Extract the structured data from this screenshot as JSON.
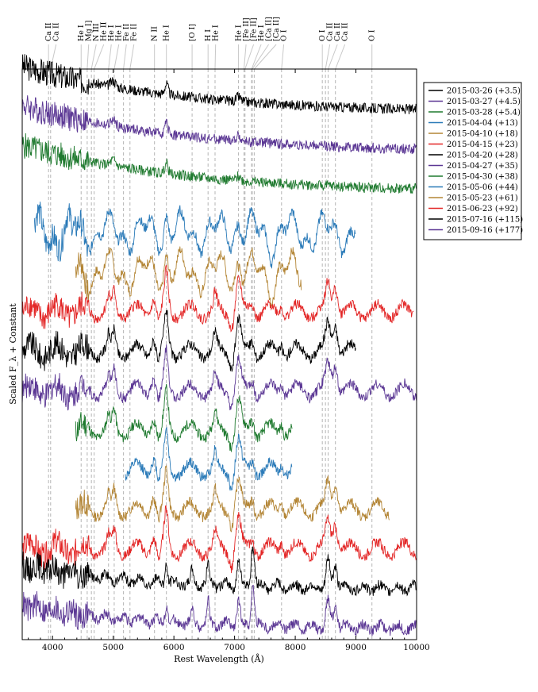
{
  "chart_data": {
    "type": "line",
    "title": "",
    "xlabel": "Rest Wavelength (Å)",
    "ylabel": "Scaled F_λ + Constant",
    "xlim": [
      3500,
      10000
    ],
    "x_ticks": [
      4000,
      5000,
      6000,
      7000,
      8000,
      9000,
      10000
    ],
    "x_tick_labels": [
      "4000",
      "5000",
      "6000",
      "7000",
      "8000",
      "9000",
      "10000"
    ],
    "legend_position": "outside-right-top",
    "grid": false,
    "line_markers": [
      {
        "label": "Ca II",
        "wavelength": 3934
      },
      {
        "label": "Ca II",
        "wavelength": 3968
      },
      {
        "label": "He I",
        "wavelength": 4471
      },
      {
        "label": "Mg I]",
        "wavelength": 4571
      },
      {
        "label": "N III",
        "wavelength": 4640
      },
      {
        "label": "He II",
        "wavelength": 4686
      },
      {
        "label": "He I",
        "wavelength": 4922
      },
      {
        "label": "He I",
        "wavelength": 5016
      },
      {
        "label": "Fe II",
        "wavelength": 5169
      },
      {
        "label": "Fe II",
        "wavelength": 5276
      },
      {
        "label": "N II",
        "wavelength": 5680
      },
      {
        "label": "He I",
        "wavelength": 5876
      },
      {
        "label": "[O I]",
        "wavelength": 6300
      },
      {
        "label": "H I",
        "wavelength": 6563
      },
      {
        "label": "He I",
        "wavelength": 6678
      },
      {
        "label": "He I",
        "wavelength": 7065
      },
      {
        "label": "[Fe II]",
        "wavelength": 7155
      },
      {
        "label": "[Fe II]",
        "wavelength": 7172
      },
      {
        "label": "He I",
        "wavelength": 7281
      },
      {
        "label": "[Ca II]",
        "wavelength": 7291
      },
      {
        "label": "[Ca II]",
        "wavelength": 7324
      },
      {
        "label": "O I",
        "wavelength": 7774
      },
      {
        "label": "O I",
        "wavelength": 8446
      },
      {
        "label": "Ca II",
        "wavelength": 8498
      },
      {
        "label": "Ca II",
        "wavelength": 8542
      },
      {
        "label": "Ca II",
        "wavelength": 8662
      },
      {
        "label": "O I",
        "wavelength": 9264
      }
    ],
    "series": [
      {
        "name": "2015-03-26 (+3.5)",
        "color": "#000000",
        "x_range": [
          3500,
          10000
        ],
        "offset": 13,
        "shape": "blue_continuum",
        "features": []
      },
      {
        "name": "2015-03-27 (+4.5)",
        "color": "#5b3794",
        "x_range": [
          3500,
          10000
        ],
        "offset": 12,
        "shape": "blue_continuum",
        "features": []
      },
      {
        "name": "2015-03-28 (+5.4)",
        "color": "#1f7a2f",
        "x_range": [
          3500,
          10000
        ],
        "offset": 11,
        "shape": "blue_continuum",
        "features": []
      },
      {
        "name": "2015-04-04 (+13)",
        "color": "#2a7ab8",
        "x_range": [
          3700,
          9000
        ],
        "offset": 10,
        "shape": "wavy",
        "features": []
      },
      {
        "name": "2015-04-10 (+18)",
        "color": "#b38535",
        "x_range": [
          4380,
          8100
        ],
        "offset": 9,
        "shape": "wavy",
        "features": []
      },
      {
        "name": "2015-04-15 (+23)",
        "color": "#e32626",
        "x_range": [
          3500,
          9950
        ],
        "offset": 8,
        "shape": "emission",
        "features": []
      },
      {
        "name": "2015-04-20 (+28)",
        "color": "#000000",
        "x_range": [
          3500,
          9000
        ],
        "offset": 7,
        "shape": "emission",
        "features": []
      },
      {
        "name": "2015-04-27 (+35)",
        "color": "#5b3794",
        "x_range": [
          3500,
          10000
        ],
        "offset": 6,
        "shape": "emission",
        "features": []
      },
      {
        "name": "2015-04-30 (+38)",
        "color": "#1f7a2f",
        "x_range": [
          4380,
          7950
        ],
        "offset": 5,
        "shape": "emission",
        "features": []
      },
      {
        "name": "2015-05-06 (+44)",
        "color": "#2a7ab8",
        "x_range": [
          5200,
          7950
        ],
        "offset": 4,
        "shape": "emission",
        "features": []
      },
      {
        "name": "2015-05-23 (+61)",
        "color": "#b38535",
        "x_range": [
          4380,
          9550
        ],
        "offset": 3,
        "shape": "emission",
        "features": []
      },
      {
        "name": "2015-06-23 (+92)",
        "color": "#e32626",
        "x_range": [
          3500,
          10000
        ],
        "offset": 2,
        "shape": "emission",
        "features": []
      },
      {
        "name": "2015-07-16 (+115)",
        "color": "#000000",
        "x_range": [
          3500,
          10000
        ],
        "offset": 1,
        "shape": "nebular",
        "features": []
      },
      {
        "name": "2015-09-16 (+177)",
        "color": "#5b3794",
        "x_range": [
          3500,
          10000
        ],
        "offset": 0,
        "shape": "nebular",
        "features": []
      }
    ]
  }
}
